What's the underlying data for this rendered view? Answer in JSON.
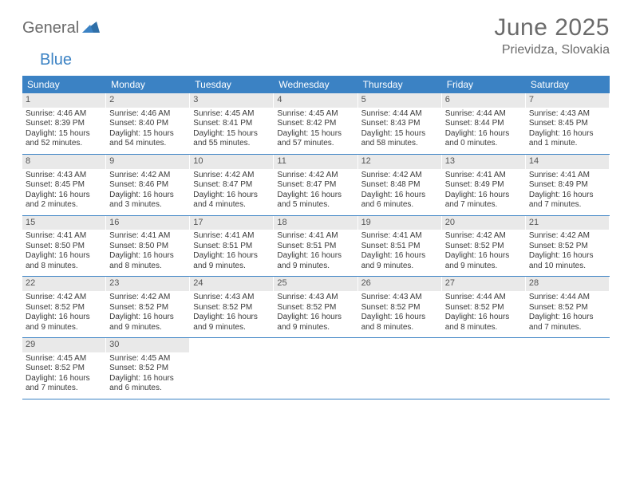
{
  "brand": {
    "part1": "General",
    "part2": "Blue"
  },
  "title": "June 2025",
  "location": "Prievidza, Slovakia",
  "colors": {
    "header_bg": "#3b82c4",
    "header_text": "#ffffff",
    "daynum_bg": "#e9e9e9",
    "text": "#3a3a3a",
    "title_text": "#6b6b6b"
  },
  "weekdays": [
    "Sunday",
    "Monday",
    "Tuesday",
    "Wednesday",
    "Thursday",
    "Friday",
    "Saturday"
  ],
  "weeks": [
    [
      {
        "n": "1",
        "sr": "4:46 AM",
        "ss": "8:39 PM",
        "d1": "Daylight: 15 hours",
        "d2": "and 52 minutes."
      },
      {
        "n": "2",
        "sr": "4:46 AM",
        "ss": "8:40 PM",
        "d1": "Daylight: 15 hours",
        "d2": "and 54 minutes."
      },
      {
        "n": "3",
        "sr": "4:45 AM",
        "ss": "8:41 PM",
        "d1": "Daylight: 15 hours",
        "d2": "and 55 minutes."
      },
      {
        "n": "4",
        "sr": "4:45 AM",
        "ss": "8:42 PM",
        "d1": "Daylight: 15 hours",
        "d2": "and 57 minutes."
      },
      {
        "n": "5",
        "sr": "4:44 AM",
        "ss": "8:43 PM",
        "d1": "Daylight: 15 hours",
        "d2": "and 58 minutes."
      },
      {
        "n": "6",
        "sr": "4:44 AM",
        "ss": "8:44 PM",
        "d1": "Daylight: 16 hours",
        "d2": "and 0 minutes."
      },
      {
        "n": "7",
        "sr": "4:43 AM",
        "ss": "8:45 PM",
        "d1": "Daylight: 16 hours",
        "d2": "and 1 minute."
      }
    ],
    [
      {
        "n": "8",
        "sr": "4:43 AM",
        "ss": "8:45 PM",
        "d1": "Daylight: 16 hours",
        "d2": "and 2 minutes."
      },
      {
        "n": "9",
        "sr": "4:42 AM",
        "ss": "8:46 PM",
        "d1": "Daylight: 16 hours",
        "d2": "and 3 minutes."
      },
      {
        "n": "10",
        "sr": "4:42 AM",
        "ss": "8:47 PM",
        "d1": "Daylight: 16 hours",
        "d2": "and 4 minutes."
      },
      {
        "n": "11",
        "sr": "4:42 AM",
        "ss": "8:47 PM",
        "d1": "Daylight: 16 hours",
        "d2": "and 5 minutes."
      },
      {
        "n": "12",
        "sr": "4:42 AM",
        "ss": "8:48 PM",
        "d1": "Daylight: 16 hours",
        "d2": "and 6 minutes."
      },
      {
        "n": "13",
        "sr": "4:41 AM",
        "ss": "8:49 PM",
        "d1": "Daylight: 16 hours",
        "d2": "and 7 minutes."
      },
      {
        "n": "14",
        "sr": "4:41 AM",
        "ss": "8:49 PM",
        "d1": "Daylight: 16 hours",
        "d2": "and 7 minutes."
      }
    ],
    [
      {
        "n": "15",
        "sr": "4:41 AM",
        "ss": "8:50 PM",
        "d1": "Daylight: 16 hours",
        "d2": "and 8 minutes."
      },
      {
        "n": "16",
        "sr": "4:41 AM",
        "ss": "8:50 PM",
        "d1": "Daylight: 16 hours",
        "d2": "and 8 minutes."
      },
      {
        "n": "17",
        "sr": "4:41 AM",
        "ss": "8:51 PM",
        "d1": "Daylight: 16 hours",
        "d2": "and 9 minutes."
      },
      {
        "n": "18",
        "sr": "4:41 AM",
        "ss": "8:51 PM",
        "d1": "Daylight: 16 hours",
        "d2": "and 9 minutes."
      },
      {
        "n": "19",
        "sr": "4:41 AM",
        "ss": "8:51 PM",
        "d1": "Daylight: 16 hours",
        "d2": "and 9 minutes."
      },
      {
        "n": "20",
        "sr": "4:42 AM",
        "ss": "8:52 PM",
        "d1": "Daylight: 16 hours",
        "d2": "and 9 minutes."
      },
      {
        "n": "21",
        "sr": "4:42 AM",
        "ss": "8:52 PM",
        "d1": "Daylight: 16 hours",
        "d2": "and 10 minutes."
      }
    ],
    [
      {
        "n": "22",
        "sr": "4:42 AM",
        "ss": "8:52 PM",
        "d1": "Daylight: 16 hours",
        "d2": "and 9 minutes."
      },
      {
        "n": "23",
        "sr": "4:42 AM",
        "ss": "8:52 PM",
        "d1": "Daylight: 16 hours",
        "d2": "and 9 minutes."
      },
      {
        "n": "24",
        "sr": "4:43 AM",
        "ss": "8:52 PM",
        "d1": "Daylight: 16 hours",
        "d2": "and 9 minutes."
      },
      {
        "n": "25",
        "sr": "4:43 AM",
        "ss": "8:52 PM",
        "d1": "Daylight: 16 hours",
        "d2": "and 9 minutes."
      },
      {
        "n": "26",
        "sr": "4:43 AM",
        "ss": "8:52 PM",
        "d1": "Daylight: 16 hours",
        "d2": "and 8 minutes."
      },
      {
        "n": "27",
        "sr": "4:44 AM",
        "ss": "8:52 PM",
        "d1": "Daylight: 16 hours",
        "d2": "and 8 minutes."
      },
      {
        "n": "28",
        "sr": "4:44 AM",
        "ss": "8:52 PM",
        "d1": "Daylight: 16 hours",
        "d2": "and 7 minutes."
      }
    ],
    [
      {
        "n": "29",
        "sr": "4:45 AM",
        "ss": "8:52 PM",
        "d1": "Daylight: 16 hours",
        "d2": "and 7 minutes."
      },
      {
        "n": "30",
        "sr": "4:45 AM",
        "ss": "8:52 PM",
        "d1": "Daylight: 16 hours",
        "d2": "and 6 minutes."
      },
      null,
      null,
      null,
      null,
      null
    ]
  ]
}
